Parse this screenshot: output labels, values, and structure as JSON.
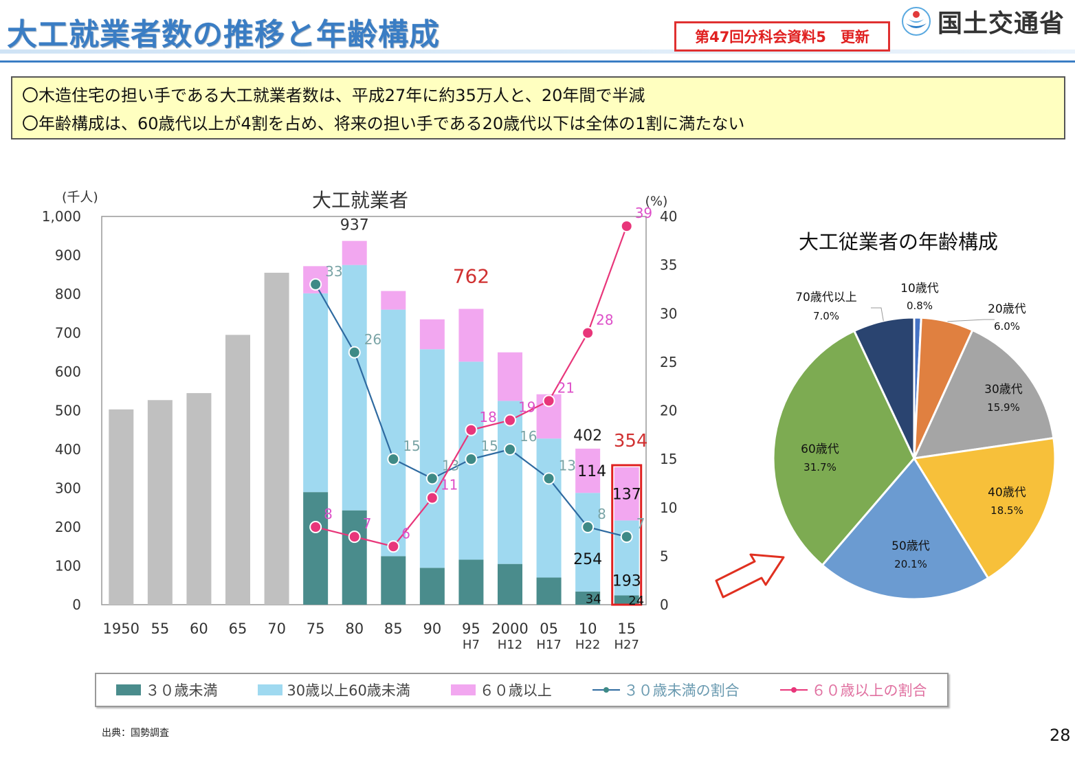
{
  "header": {
    "title": "大工就業者数の推移と年齢構成",
    "badge": "第47回分科会資料5　更新",
    "logo_text": "国土交通省",
    "logo_icon": "mlit-logo-icon"
  },
  "summary": {
    "line1": "〇木造住宅の担い手である大工就業者数は、平成27年に約35万人と、20年間で半減",
    "line2": "〇年齢構成は、60歳代以上が4割を占め、将来の担い手である20歳代以下は全体の1割に満たない"
  },
  "legend": {
    "under30": "３０歳未満",
    "mid": "30歳以上60歳未満",
    "over60": "６０歳以上",
    "under30_rate": "３０歳未満の割合",
    "over60_rate": "６０歳以上の割合"
  },
  "colors": {
    "gray": "#c0c0c0",
    "under30": "#4a8c8c",
    "mid": "#9fd9f0",
    "over60": "#f2a7f0",
    "under30_line": "#2e6aa0",
    "over60_line": "#e8367a",
    "under30_marker": "#3e8a86"
  },
  "footer": {
    "source": "出典：国勢調査",
    "page": "28"
  },
  "chart_data": [
    {
      "type": "bar",
      "title": "大工就業者",
      "ylabel": "(千人)",
      "y2label": "(%)",
      "ylim": [
        0,
        1000
      ],
      "y2lim": [
        0,
        40
      ],
      "yticks": [
        "0",
        "100",
        "200",
        "300",
        "400",
        "500",
        "600",
        "700",
        "800",
        "900",
        "1,000"
      ],
      "y2ticks": [
        "0",
        "5",
        "10",
        "15",
        "20",
        "25",
        "30",
        "35",
        "40"
      ],
      "categories": [
        "1950",
        "55",
        "60",
        "65",
        "70",
        "75",
        "80",
        "85",
        "90",
        "95",
        "2000",
        "05",
        "10",
        "15"
      ],
      "category_sublabels": [
        "",
        "",
        "",
        "",
        "",
        "",
        "",
        "",
        "",
        "H7",
        "H12",
        "H17",
        "H22",
        "H27"
      ],
      "total_only": [
        503,
        527,
        545,
        695,
        855,
        null,
        null,
        null,
        null,
        null,
        null,
        null,
        null,
        null
      ],
      "series": [
        {
          "name": "３０歳未満",
          "values": [
            null,
            null,
            null,
            null,
            null,
            290,
            243,
            125,
            95,
            116,
            105,
            70,
            34,
            24
          ]
        },
        {
          "name": "30歳以上60歳未満",
          "values": [
            null,
            null,
            null,
            null,
            null,
            512,
            632,
            635,
            563,
            510,
            420,
            358,
            254,
            193
          ]
        },
        {
          "name": "６０歳以上",
          "values": [
            null,
            null,
            null,
            null,
            null,
            70,
            62,
            48,
            77,
            136,
            125,
            114,
            114,
            137
          ]
        },
        {
          "name": "３０歳未満の割合",
          "axis": "right",
          "values": [
            null,
            null,
            null,
            null,
            null,
            33,
            26,
            15,
            13,
            15,
            16,
            13,
            8,
            7
          ]
        },
        {
          "name": "６０歳以上の割合",
          "axis": "right",
          "values": [
            null,
            null,
            null,
            null,
            null,
            8,
            7,
            6,
            11,
            18,
            19,
            21,
            28,
            39
          ]
        }
      ],
      "annotations": [
        {
          "category": "80",
          "text": "937"
        },
        {
          "category": "95",
          "text": "762"
        },
        {
          "category": "10",
          "text": "402"
        },
        {
          "category": "15",
          "text": "354"
        },
        {
          "category": "10",
          "text": "114"
        },
        {
          "category": "10",
          "text": "254"
        },
        {
          "category": "10",
          "text": "34"
        },
        {
          "category": "15",
          "text": "137"
        },
        {
          "category": "15",
          "text": "193"
        },
        {
          "category": "15",
          "text": "24"
        }
      ]
    },
    {
      "type": "pie",
      "title": "大工従業者の年齢構成",
      "slices": [
        {
          "label": "10歳代",
          "pct_label": "0.8%",
          "value": 0.8,
          "color": "#4472c4"
        },
        {
          "label": "20歳代",
          "pct_label": "6.0%",
          "value": 6.0,
          "color": "#e08040"
        },
        {
          "label": "30歳代",
          "pct_label": "15.9%",
          "value": 15.9,
          "color": "#a5a5a5"
        },
        {
          "label": "40歳代",
          "pct_label": "18.5%",
          "value": 18.5,
          "color": "#f7c03a"
        },
        {
          "label": "50歳代",
          "pct_label": "20.1%",
          "value": 20.1,
          "color": "#6b9bd1"
        },
        {
          "label": "60歳代",
          "pct_label": "31.7%",
          "value": 31.7,
          "color": "#7dab52"
        },
        {
          "label": "70歳代以上",
          "pct_label": "7.0%",
          "value": 7.0,
          "color": "#2a4470"
        }
      ]
    }
  ]
}
